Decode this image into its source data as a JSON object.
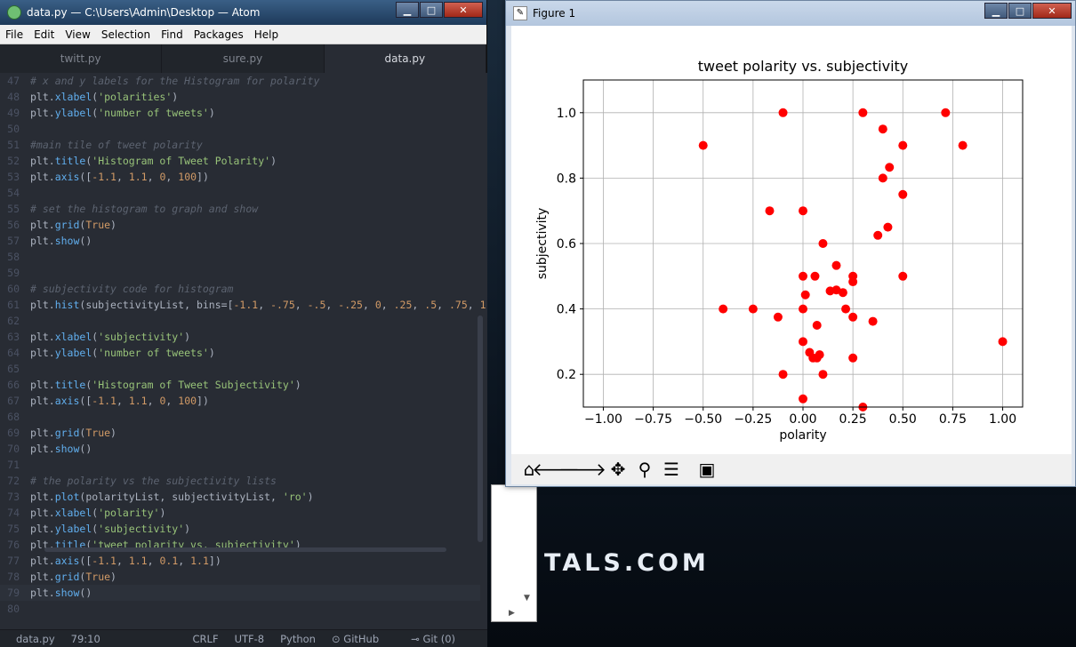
{
  "atom": {
    "title": "data.py — C:\\Users\\Admin\\Desktop — Atom",
    "menu": [
      "File",
      "Edit",
      "View",
      "Selection",
      "Find",
      "Packages",
      "Help"
    ],
    "tabs": [
      "twitt.py",
      "sure.py",
      "data.py"
    ],
    "active_tab": 2,
    "lines": [
      {
        "n": "47",
        "t": "# x and y labels for the Histogram for polarity"
      },
      {
        "n": "48",
        "t": "plt.xlabel('polarities')"
      },
      {
        "n": "49",
        "t": "plt.ylabel('number of tweets')"
      },
      {
        "n": "50",
        "t": ""
      },
      {
        "n": "51",
        "t": "#main tile of tweet polarity"
      },
      {
        "n": "52",
        "t": "plt.title('Histogram of Tweet Polarity')"
      },
      {
        "n": "53",
        "t": "plt.axis([-1.1, 1.1, 0, 100])"
      },
      {
        "n": "54",
        "t": ""
      },
      {
        "n": "55",
        "t": "# set the histogram to graph and show"
      },
      {
        "n": "56",
        "t": "plt.grid(True)"
      },
      {
        "n": "57",
        "t": "plt.show()"
      },
      {
        "n": "58",
        "t": ""
      },
      {
        "n": "59",
        "t": ""
      },
      {
        "n": "60",
        "t": "# subjectivity code for histogram"
      },
      {
        "n": "61",
        "t": "plt.hist(subjectivityList, bins=[-1.1, -.75, -.5, -.25, 0, .25, .5, .75, 1"
      },
      {
        "n": "62",
        "t": ""
      },
      {
        "n": "63",
        "t": "plt.xlabel('subjectivity')"
      },
      {
        "n": "64",
        "t": "plt.ylabel('number of tweets')"
      },
      {
        "n": "65",
        "t": ""
      },
      {
        "n": "66",
        "t": "plt.title('Histogram of Tweet Subjectivity')"
      },
      {
        "n": "67",
        "t": "plt.axis([-1.1, 1.1, 0, 100])"
      },
      {
        "n": "68",
        "t": ""
      },
      {
        "n": "69",
        "t": "plt.grid(True)"
      },
      {
        "n": "70",
        "t": "plt.show()"
      },
      {
        "n": "71",
        "t": ""
      },
      {
        "n": "72",
        "t": "# the polarity vs the subjectivity lists"
      },
      {
        "n": "73",
        "t": "plt.plot(polarityList, subjectivityList, 'ro')"
      },
      {
        "n": "74",
        "t": "plt.xlabel('polarity')"
      },
      {
        "n": "75",
        "t": "plt.ylabel('subjectivity')"
      },
      {
        "n": "76",
        "t": "plt.title('tweet polarity vs. subjectivity')"
      },
      {
        "n": "77",
        "t": "plt.axis([-1.1, 1.1, 0.1, 1.1])"
      },
      {
        "n": "78",
        "t": "plt.grid(True)"
      },
      {
        "n": "79",
        "t": "plt.show()"
      },
      {
        "n": "80",
        "t": ""
      }
    ],
    "cursor_line": "79",
    "status": {
      "file": "data.py",
      "position": "79:10",
      "line_ending": "CRLF",
      "encoding": "UTF-8",
      "grammar": "Python",
      "github": "GitHub",
      "git": "Git (0)"
    }
  },
  "figure": {
    "title": "Figure 1",
    "toolbar": [
      "home-icon",
      "back-icon",
      "forward-icon",
      "pan-icon",
      "zoom-icon",
      "configure-icon",
      "save-icon"
    ]
  },
  "desktop": {
    "banner": "TALS.COM"
  },
  "chart_data": {
    "type": "scatter",
    "title": "tweet polarity vs. subjectivity",
    "xlabel": "polarity",
    "ylabel": "subjectivity",
    "xlim": [
      -1.1,
      1.1
    ],
    "ylim": [
      0.1,
      1.1
    ],
    "xticks": [
      "−1.00",
      "−0.75",
      "−0.50",
      "−0.25",
      "0.00",
      "0.25",
      "0.50",
      "0.75",
      "1.00"
    ],
    "xtick_values": [
      -1.0,
      -0.75,
      -0.5,
      -0.25,
      0.0,
      0.25,
      0.5,
      0.75,
      1.0
    ],
    "yticks": [
      "0.2",
      "0.4",
      "0.6",
      "0.8",
      "1.0"
    ],
    "ytick_values": [
      0.2,
      0.4,
      0.6,
      0.8,
      1.0
    ],
    "grid": true,
    "marker_color": "#ff0000",
    "points": [
      {
        "x": -0.5,
        "y": 0.9
      },
      {
        "x": -0.1,
        "y": 1.0
      },
      {
        "x": 0.3,
        "y": 1.0
      },
      {
        "x": 0.714,
        "y": 1.0
      },
      {
        "x": 0.4,
        "y": 0.95
      },
      {
        "x": 0.5,
        "y": 0.9
      },
      {
        "x": 0.8,
        "y": 0.9
      },
      {
        "x": 0.433,
        "y": 0.833
      },
      {
        "x": 0.4,
        "y": 0.8
      },
      {
        "x": 0.5,
        "y": 0.75
      },
      {
        "x": -0.167,
        "y": 0.7
      },
      {
        "x": 0.0,
        "y": 0.7
      },
      {
        "x": 0.425,
        "y": 0.65
      },
      {
        "x": 0.375,
        "y": 0.625
      },
      {
        "x": 0.1,
        "y": 0.6
      },
      {
        "x": 0.167,
        "y": 0.533
      },
      {
        "x": 0.0,
        "y": 0.5
      },
      {
        "x": 0.06,
        "y": 0.5
      },
      {
        "x": 0.25,
        "y": 0.5
      },
      {
        "x": 0.5,
        "y": 0.5
      },
      {
        "x": 0.25,
        "y": 0.483
      },
      {
        "x": 0.136,
        "y": 0.455
      },
      {
        "x": 0.167,
        "y": 0.458
      },
      {
        "x": 0.2,
        "y": 0.45
      },
      {
        "x": 0.012,
        "y": 0.443
      },
      {
        "x": -0.4,
        "y": 0.4
      },
      {
        "x": -0.25,
        "y": 0.4
      },
      {
        "x": 0.0,
        "y": 0.4
      },
      {
        "x": 0.214,
        "y": 0.4
      },
      {
        "x": -0.125,
        "y": 0.375
      },
      {
        "x": 0.25,
        "y": 0.375
      },
      {
        "x": 0.35,
        "y": 0.362
      },
      {
        "x": 0.07,
        "y": 0.35
      },
      {
        "x": 0.0,
        "y": 0.3
      },
      {
        "x": 1.0,
        "y": 0.3
      },
      {
        "x": 0.033,
        "y": 0.267
      },
      {
        "x": 0.083,
        "y": 0.26
      },
      {
        "x": 0.05,
        "y": 0.25
      },
      {
        "x": 0.07,
        "y": 0.25
      },
      {
        "x": 0.25,
        "y": 0.25
      },
      {
        "x": -0.1,
        "y": 0.2
      },
      {
        "x": 0.1,
        "y": 0.2
      },
      {
        "x": 0.0,
        "y": 0.125
      },
      {
        "x": 0.3,
        "y": 0.1
      }
    ]
  }
}
